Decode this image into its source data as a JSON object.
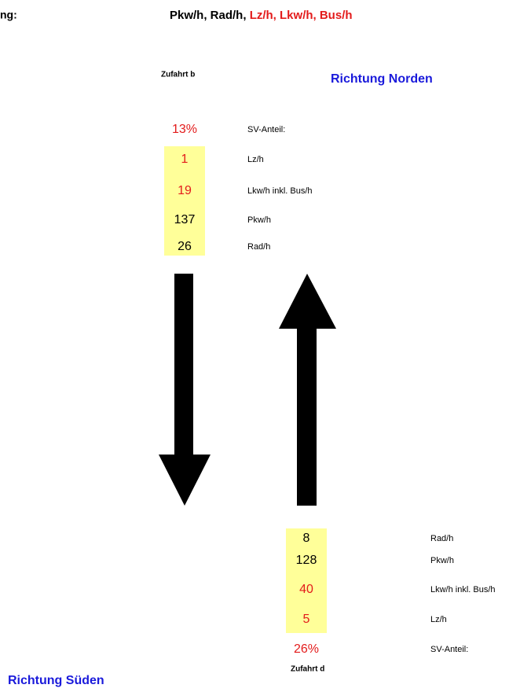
{
  "header": {
    "left": "ng:",
    "title_black": "Pkw/h, Rad/h, ",
    "title_red": "Lz/h, Lkw/h, Bus/h"
  },
  "north": {
    "zufahrt": "Zufahrt b",
    "direction": "Richtung Norden",
    "rows": [
      {
        "value": "13%",
        "label": "SV-Anteil:"
      },
      {
        "value": "1",
        "label": "Lz/h"
      },
      {
        "value": "19",
        "label": "Lkw/h inkl. Bus/h"
      },
      {
        "value": "137",
        "label": "Pkw/h"
      },
      {
        "value": "26",
        "label": "Rad/h"
      }
    ]
  },
  "south": {
    "zufahrt": "Zufahrt d",
    "direction": "Richtung Süden",
    "rows": [
      {
        "value": "8",
        "label": "Rad/h"
      },
      {
        "value": "128",
        "label": "Pkw/h"
      },
      {
        "value": "40",
        "label": "Lkw/h inkl. Bus/h"
      },
      {
        "value": "5",
        "label": "Lz/h"
      },
      {
        "value": "26%",
        "label": "SV-Anteil:"
      }
    ]
  }
}
